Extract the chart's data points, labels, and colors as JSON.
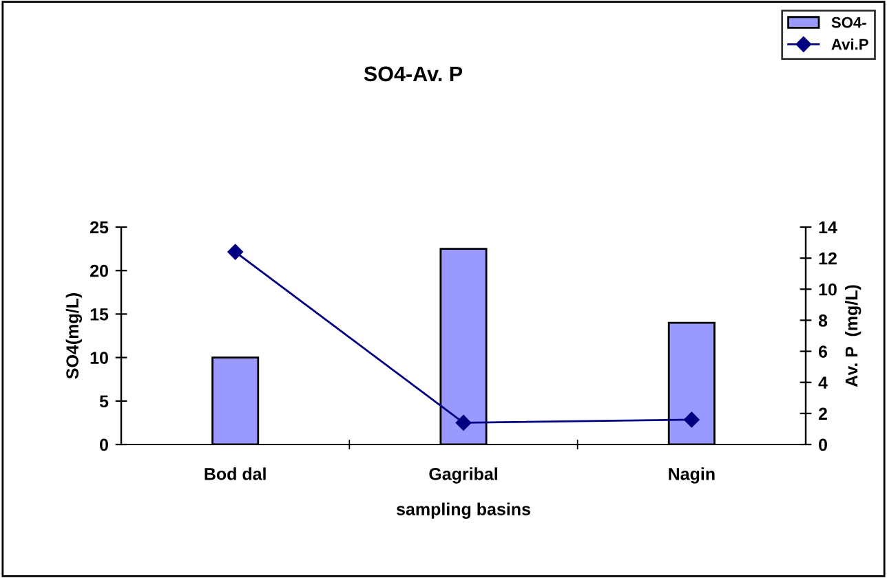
{
  "chart_data": {
    "type": "bar",
    "title": "SO4-Av. P",
    "xlabel": "sampling basins",
    "ylabel": "SO4(mg/L)",
    "y2label": "Av. P  (mg/L)",
    "categories": [
      "Bod dal",
      "Gagribal",
      "Nagin"
    ],
    "series": [
      {
        "name": "SO4-",
        "color": "#9999ff",
        "values": [
          10,
          22.5,
          14
        ]
      },
      {
        "name": "Avi.P",
        "type": "line",
        "axis": "y2",
        "color": "#000080",
        "marker": "diamond",
        "values": [
          12.4,
          1.4,
          1.6
        ]
      }
    ],
    "ylim": [
      0,
      25
    ],
    "yticks": [
      0,
      5,
      10,
      15,
      20,
      25
    ],
    "y2lim": [
      0,
      14
    ],
    "y2ticks": [
      0,
      2,
      4,
      6,
      8,
      10,
      12,
      14
    ],
    "grid": false,
    "legend": "top right"
  }
}
